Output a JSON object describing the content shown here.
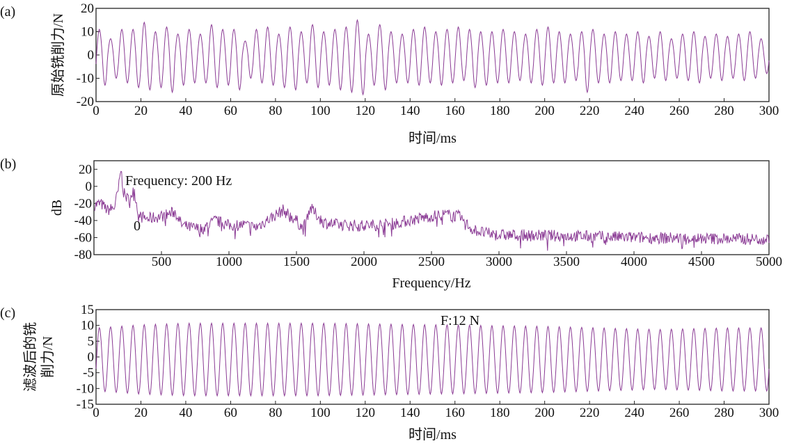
{
  "colors": {
    "line": "#8a3a94",
    "axis": "#222222"
  },
  "chart_data": [
    {
      "type": "line",
      "panel": "(a)",
      "ylabel": "原始铣削力/N",
      "xlabel": "时间/ms",
      "xlim": [
        0,
        300
      ],
      "ylim": [
        -20,
        20
      ],
      "xticks": [
        0,
        20,
        40,
        60,
        80,
        100,
        120,
        140,
        160,
        180,
        200,
        220,
        240,
        260,
        280,
        300
      ],
      "yticks": [
        20,
        10,
        0,
        -10,
        -20
      ],
      "signal_frequency_hz": 200,
      "cycle_peaks": [
        11,
        7,
        11,
        11,
        14,
        10,
        12,
        9,
        11,
        9,
        13,
        11,
        11,
        6,
        11,
        12,
        9,
        12,
        10,
        13,
        10,
        11,
        12,
        15,
        9,
        13,
        10,
        9,
        11,
        12,
        10,
        11,
        12,
        11,
        10,
        10,
        11,
        10,
        9,
        11,
        12,
        10,
        9,
        10,
        11,
        9,
        10,
        9,
        10,
        8,
        10,
        7,
        9,
        10,
        8,
        9,
        8,
        9,
        10,
        7
      ],
      "cycle_troughs": [
        -13,
        -10,
        -12,
        -14,
        -15,
        -14,
        -16,
        -13,
        -12,
        -12,
        -14,
        -13,
        -15,
        -10,
        -12,
        -13,
        -14,
        -15,
        -12,
        -14,
        -13,
        -15,
        -16,
        -17,
        -13,
        -15,
        -12,
        -12,
        -13,
        -12,
        -13,
        -12,
        -11,
        -14,
        -13,
        -12,
        -12,
        -11,
        -12,
        -13,
        -12,
        -12,
        -11,
        -16,
        -12,
        -12,
        -11,
        -11,
        -12,
        -10,
        -11,
        -10,
        -11,
        -12,
        -10,
        -11,
        -10,
        -11,
        -10,
        -8
      ]
    },
    {
      "type": "line",
      "panel": "(b)",
      "ylabel": "dB",
      "xlabel": "Frequency/Hz",
      "xlim": [
        0,
        5000
      ],
      "ylim": [
        -80,
        30
      ],
      "xticks": [
        500,
        1000,
        1500,
        2000,
        2500,
        3000,
        3500,
        4000,
        4500,
        5000
      ],
      "yticks": [
        20,
        0,
        -20,
        -40,
        -60,
        -80
      ],
      "annotations": [
        "Frequency: 200 Hz",
        "0"
      ],
      "x": [
        0,
        50,
        100,
        150,
        180,
        200,
        220,
        250,
        300,
        330,
        400,
        500,
        600,
        650,
        700,
        800,
        900,
        1000,
        1100,
        1200,
        1300,
        1400,
        1500,
        1550,
        1600,
        1700,
        1800,
        2000,
        2200,
        2400,
        2500,
        2600,
        2700,
        2800,
        2900,
        3000,
        3500,
        4000,
        4500,
        5000
      ],
      "values": [
        -22,
        -20,
        -28,
        -25,
        -5,
        20,
        -8,
        -15,
        -5,
        -35,
        -38,
        -35,
        -30,
        -45,
        -48,
        -50,
        -40,
        -46,
        -45,
        -48,
        -38,
        -28,
        -40,
        -50,
        -25,
        -42,
        -45,
        -46,
        -44,
        -38,
        -35,
        -33,
        -35,
        -50,
        -55,
        -57,
        -58,
        -60,
        -61,
        -62
      ]
    },
    {
      "type": "line",
      "panel": "(c)",
      "ylabel": "滤波后的铣削力/N",
      "ylabel_lines": [
        "滤波后的铣",
        "削力/N"
      ],
      "xlabel": "时间/ms",
      "xlim": [
        0,
        300
      ],
      "ylim": [
        -15,
        15
      ],
      "xticks": [
        0,
        20,
        40,
        60,
        80,
        100,
        120,
        140,
        160,
        180,
        200,
        220,
        240,
        260,
        280,
        300
      ],
      "yticks": [
        15,
        10,
        5,
        0,
        -5,
        -10,
        -15
      ],
      "annotations": [
        "F:12 N"
      ],
      "signal_frequency_hz": 200,
      "amplitude_envelope_ms": [
        0,
        20,
        40,
        100,
        150,
        200,
        250,
        280,
        300
      ],
      "amplitude_envelope": [
        10,
        11,
        11.5,
        11.5,
        11,
        10.5,
        9.5,
        10,
        10
      ]
    }
  ],
  "panel_labels": [
    "(a)",
    "(b)",
    "(c)"
  ]
}
